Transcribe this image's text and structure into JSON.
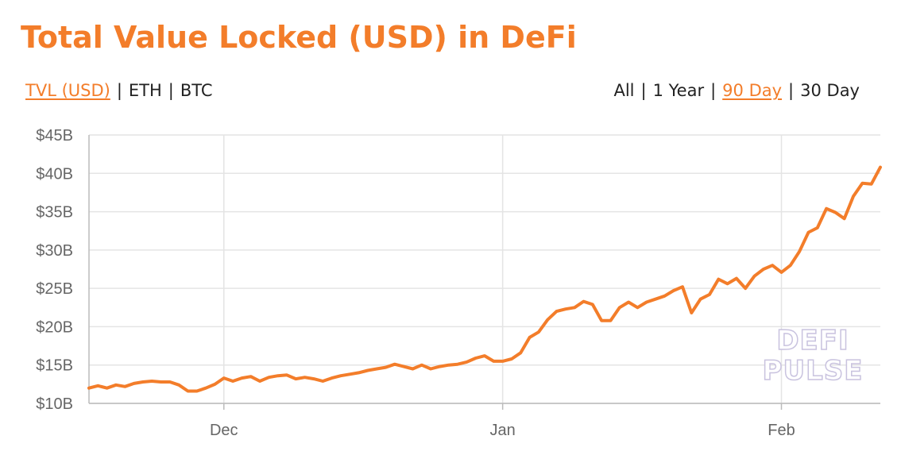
{
  "title": "Total Value Locked (USD) in DeFi",
  "metric_toggle": {
    "items": [
      {
        "label": "TVL (USD)",
        "active": true
      },
      {
        "label": "ETH",
        "active": false
      },
      {
        "label": "BTC",
        "active": false
      }
    ],
    "separator": "|"
  },
  "range_toggle": {
    "items": [
      {
        "label": "All",
        "active": false
      },
      {
        "label": "1 Year",
        "active": false
      },
      {
        "label": "90 Day",
        "active": true
      },
      {
        "label": "30 Day",
        "active": false
      }
    ],
    "separator": "|"
  },
  "watermark": {
    "line1": "DEFI",
    "line2": "PULSE"
  },
  "colors": {
    "accent": "#f37d2a",
    "grid": "#e4e4e4",
    "text": "#222222",
    "axis_text": "#666666",
    "watermark_stroke": "#c9c3df"
  },
  "chart_data": {
    "type": "line",
    "title": "Total Value Locked (USD) in DeFi",
    "xlabel": "",
    "ylabel": "",
    "x_ticks": [
      {
        "label": "Dec",
        "date": "2020-12-01"
      },
      {
        "label": "Jan",
        "date": "2021-01-01"
      },
      {
        "label": "Feb",
        "date": "2021-02-01"
      }
    ],
    "x_range": [
      "2020-11-16",
      "2021-02-12"
    ],
    "y_ticks": [
      "$10B",
      "$15B",
      "$20B",
      "$25B",
      "$30B",
      "$35B",
      "$40B",
      "$45B"
    ],
    "ylim": [
      10,
      45
    ],
    "y_unit": "B USD",
    "grid": true,
    "legend": "none",
    "series": [
      {
        "color": "#f37d2a",
        "points": [
          [
            "2020-11-16",
            12.0
          ],
          [
            "2020-11-17",
            12.3
          ],
          [
            "2020-11-18",
            12.0
          ],
          [
            "2020-11-19",
            12.4
          ],
          [
            "2020-11-20",
            12.2
          ],
          [
            "2020-11-21",
            12.6
          ],
          [
            "2020-11-22",
            12.8
          ],
          [
            "2020-11-23",
            12.9
          ],
          [
            "2020-11-24",
            12.8
          ],
          [
            "2020-11-25",
            12.8
          ],
          [
            "2020-11-26",
            12.4
          ],
          [
            "2020-11-27",
            11.6
          ],
          [
            "2020-11-28",
            11.6
          ],
          [
            "2020-11-29",
            12.0
          ],
          [
            "2020-11-30",
            12.5
          ],
          [
            "2020-12-01",
            13.3
          ],
          [
            "2020-12-02",
            12.9
          ],
          [
            "2020-12-03",
            13.3
          ],
          [
            "2020-12-04",
            13.5
          ],
          [
            "2020-12-05",
            12.9
          ],
          [
            "2020-12-06",
            13.4
          ],
          [
            "2020-12-07",
            13.6
          ],
          [
            "2020-12-08",
            13.7
          ],
          [
            "2020-12-09",
            13.2
          ],
          [
            "2020-12-10",
            13.4
          ],
          [
            "2020-12-11",
            13.2
          ],
          [
            "2020-12-12",
            12.9
          ],
          [
            "2020-12-13",
            13.3
          ],
          [
            "2020-12-14",
            13.6
          ],
          [
            "2020-12-15",
            13.8
          ],
          [
            "2020-12-16",
            14.0
          ],
          [
            "2020-12-17",
            14.3
          ],
          [
            "2020-12-18",
            14.5
          ],
          [
            "2020-12-19",
            14.7
          ],
          [
            "2020-12-20",
            15.1
          ],
          [
            "2020-12-21",
            14.8
          ],
          [
            "2020-12-22",
            14.5
          ],
          [
            "2020-12-23",
            15.0
          ],
          [
            "2020-12-24",
            14.5
          ],
          [
            "2020-12-25",
            14.8
          ],
          [
            "2020-12-26",
            15.0
          ],
          [
            "2020-12-27",
            15.1
          ],
          [
            "2020-12-28",
            15.4
          ],
          [
            "2020-12-29",
            15.9
          ],
          [
            "2020-12-30",
            16.2
          ],
          [
            "2020-12-31",
            15.5
          ],
          [
            "2021-01-01",
            15.5
          ],
          [
            "2021-01-02",
            15.8
          ],
          [
            "2021-01-03",
            16.6
          ],
          [
            "2021-01-04",
            18.6
          ],
          [
            "2021-01-05",
            19.3
          ],
          [
            "2021-01-06",
            20.9
          ],
          [
            "2021-01-07",
            22.0
          ],
          [
            "2021-01-08",
            22.3
          ],
          [
            "2021-01-09",
            22.5
          ],
          [
            "2021-01-10",
            23.3
          ],
          [
            "2021-01-11",
            22.9
          ],
          [
            "2021-01-12",
            20.8
          ],
          [
            "2021-01-13",
            20.8
          ],
          [
            "2021-01-14",
            22.5
          ],
          [
            "2021-01-15",
            23.2
          ],
          [
            "2021-01-16",
            22.5
          ],
          [
            "2021-01-17",
            23.2
          ],
          [
            "2021-01-18",
            23.6
          ],
          [
            "2021-01-19",
            24.0
          ],
          [
            "2021-01-20",
            24.7
          ],
          [
            "2021-01-21",
            25.2
          ],
          [
            "2021-01-22",
            21.8
          ],
          [
            "2021-01-23",
            23.6
          ],
          [
            "2021-01-24",
            24.2
          ],
          [
            "2021-01-25",
            26.2
          ],
          [
            "2021-01-26",
            25.6
          ],
          [
            "2021-01-27",
            26.3
          ],
          [
            "2021-01-28",
            25.0
          ],
          [
            "2021-01-29",
            26.6
          ],
          [
            "2021-01-30",
            27.5
          ],
          [
            "2021-01-31",
            28.0
          ],
          [
            "2021-02-01",
            27.1
          ],
          [
            "2021-02-02",
            28.0
          ],
          [
            "2021-02-03",
            29.8
          ],
          [
            "2021-02-04",
            32.3
          ],
          [
            "2021-02-05",
            32.9
          ],
          [
            "2021-02-06",
            35.4
          ],
          [
            "2021-02-07",
            34.9
          ],
          [
            "2021-02-08",
            34.1
          ],
          [
            "2021-02-09",
            37.0
          ],
          [
            "2021-02-10",
            38.7
          ],
          [
            "2021-02-11",
            38.6
          ],
          [
            "2021-02-12",
            40.8
          ]
        ]
      }
    ]
  }
}
